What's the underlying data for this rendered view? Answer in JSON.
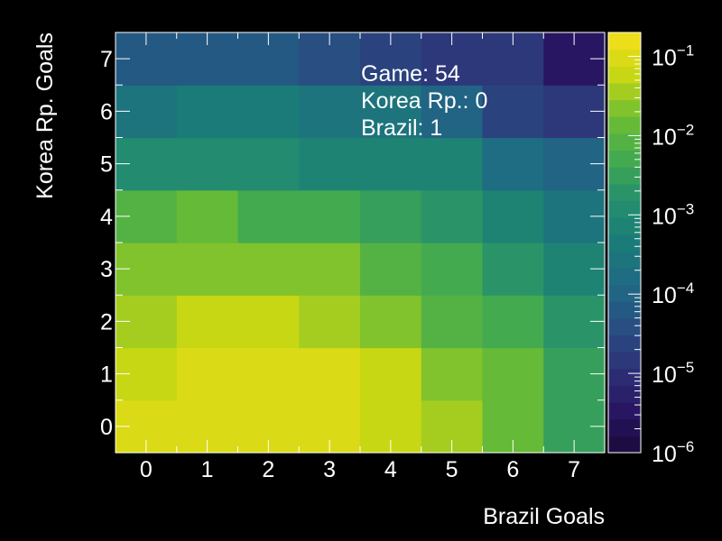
{
  "chart_data": {
    "type": "heatmap",
    "xlabel": "Brazil Goals",
    "ylabel": "Korea Rp. Goals",
    "x_categories": [
      "0",
      "1",
      "2",
      "3",
      "4",
      "5",
      "6",
      "7"
    ],
    "y_categories": [
      "0",
      "1",
      "2",
      "3",
      "4",
      "5",
      "6",
      "7"
    ],
    "z_scale": "log",
    "z_range": [
      1e-06,
      0.2
    ],
    "colorbar_ticks": [
      {
        "base": "10",
        "exp": "−1",
        "value": 0.1
      },
      {
        "base": "10",
        "exp": "−2",
        "value": 0.01
      },
      {
        "base": "10",
        "exp": "−3",
        "value": 0.001
      },
      {
        "base": "10",
        "exp": "−4",
        "value": 0.0001
      },
      {
        "base": "10",
        "exp": "−5",
        "value": 1e-05
      },
      {
        "base": "10",
        "exp": "−6",
        "value": 1e-06
      }
    ],
    "values": [
      [
        0.12,
        0.12,
        0.12,
        0.12,
        0.05,
        0.03,
        0.012,
        0.004
      ],
      [
        0.07,
        0.12,
        0.12,
        0.12,
        0.05,
        0.02,
        0.012,
        0.004
      ],
      [
        0.04,
        0.07,
        0.07,
        0.03,
        0.02,
        0.01,
        0.005,
        0.002
      ],
      [
        0.02,
        0.02,
        0.02,
        0.02,
        0.01,
        0.005,
        0.002,
        0.0006
      ],
      [
        0.01,
        0.015,
        0.006,
        0.006,
        0.003,
        0.002,
        0.0008,
        0.0003
      ],
      [
        0.0015,
        0.0015,
        0.0015,
        0.0008,
        0.0008,
        0.0006,
        0.0002,
        0.0001
      ],
      [
        0.0003,
        0.0005,
        0.0005,
        0.0003,
        0.0003,
        0.0001,
        3e-05,
        1.2e-05
      ],
      [
        8e-05,
        8e-05,
        8e-05,
        4e-05,
        2e-05,
        1.2e-05,
        1.2e-05,
        3e-06
      ]
    ],
    "annotation": [
      "Game: 54",
      "Korea Rp.: 0",
      "Brazil: 1"
    ]
  },
  "colors": {
    "background": "#000000",
    "text": "#ffffff"
  }
}
